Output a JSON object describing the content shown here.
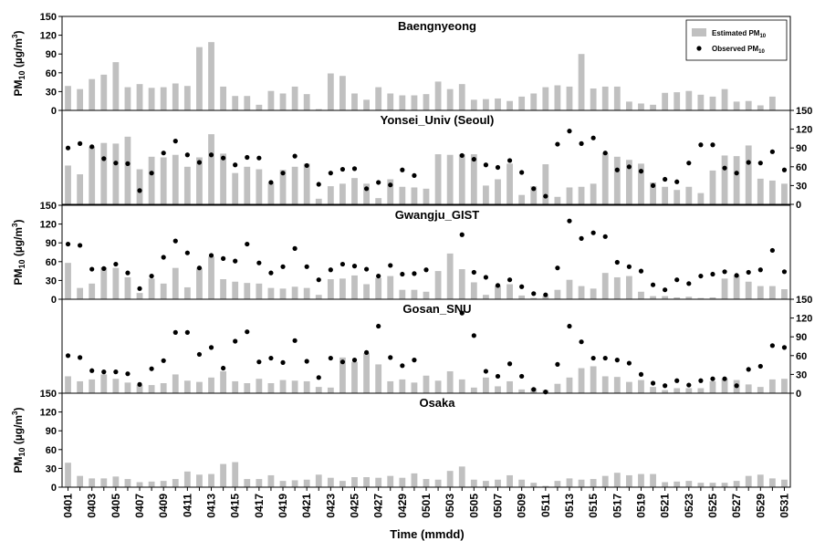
{
  "chart_data": {
    "type": "bar",
    "xlabel": "Time (mmdd)",
    "ylabel_prefix": "PM",
    "ylabel_sub": "10",
    "ylabel_unit": "(µg/m",
    "ylabel_sup": "3",
    "ylabel_close": ")",
    "ylim": [
      0,
      150
    ],
    "yticks": [
      0,
      30,
      60,
      90,
      120,
      150
    ],
    "grid": false,
    "legend_position": "top-right",
    "legend": {
      "estimated": "Estimated PM",
      "observed": "Observed PM",
      "sub": "10"
    },
    "colors": {
      "estimated": "#c0c0c0",
      "observed": "#000000"
    },
    "categories": [
      "0401",
      "0402",
      "0403",
      "0404",
      "0405",
      "0406",
      "0407",
      "0408",
      "0409",
      "0410",
      "0411",
      "0412",
      "0413",
      "0414",
      "0415",
      "0416",
      "0417",
      "0418",
      "0419",
      "0420",
      "0421",
      "0422",
      "0423",
      "0424",
      "0425",
      "0426",
      "0427",
      "0428",
      "0429",
      "0430",
      "0501",
      "0502",
      "0503",
      "0504",
      "0505",
      "0506",
      "0507",
      "0508",
      "0509",
      "0510",
      "0511",
      "0512",
      "0513",
      "0514",
      "0515",
      "0516",
      "0517",
      "0518",
      "0519",
      "0520",
      "0521",
      "0522",
      "0523",
      "0524",
      "0525",
      "0526",
      "0527",
      "0528",
      "0529",
      "0530",
      "0531"
    ],
    "x_tick_labels": [
      "0401",
      "0403",
      "0405",
      "0407",
      "0409",
      "0411",
      "0413",
      "0415",
      "0417",
      "0419",
      "0421",
      "0423",
      "0425",
      "0427",
      "0429",
      "0501",
      "0503",
      "0505",
      "0507",
      "0509",
      "0511",
      "0513",
      "0515",
      "0517",
      "0519",
      "0521",
      "0523",
      "0525",
      "0527",
      "0529",
      "0531"
    ],
    "panels": [
      {
        "title": "Baengnyeong",
        "axis_side": "left",
        "estimated": [
          39,
          34,
          50,
          57,
          77,
          37,
          42,
          36,
          37,
          43,
          39,
          101,
          109,
          38,
          23,
          23,
          9,
          31,
          27,
          38,
          26,
          2,
          59,
          55,
          27,
          17,
          37,
          27,
          24,
          24,
          26,
          46,
          34,
          42,
          17,
          18,
          19,
          15,
          22,
          27,
          37,
          40,
          38,
          90,
          35,
          38,
          38,
          14,
          11,
          9,
          28,
          29,
          31,
          25,
          22,
          34,
          14,
          15,
          8,
          22,
          null
        ],
        "observed": []
      },
      {
        "title": "Yonsei_Univ (Seoul)",
        "axis_side": "right",
        "estimated": [
          62,
          48,
          92,
          98,
          97,
          108,
          56,
          76,
          75,
          79,
          60,
          75,
          112,
          81,
          50,
          60,
          56,
          34,
          55,
          60,
          65,
          9,
          29,
          33,
          42,
          33,
          10,
          40,
          28,
          27,
          25,
          80,
          79,
          80,
          80,
          30,
          40,
          65,
          15,
          29,
          64,
          12,
          27,
          28,
          33,
          82,
          76,
          71,
          65,
          35,
          28,
          23,
          28,
          18,
          54,
          78,
          77,
          94,
          41,
          38,
          33
        ],
        "observed": [
          90,
          97,
          92,
          73,
          66,
          65,
          22,
          50,
          82,
          101,
          79,
          67,
          79,
          74,
          63,
          75,
          74,
          35,
          50,
          77,
          62,
          32,
          50,
          56,
          57,
          25,
          35,
          31,
          55,
          46,
          null,
          null,
          null,
          78,
          72,
          63,
          59,
          70,
          51,
          25,
          13,
          96,
          117,
          97,
          106,
          82,
          55,
          60,
          53,
          30,
          40,
          36,
          66,
          95,
          95,
          58,
          50,
          67,
          66,
          84,
          55
        ]
      },
      {
        "title": "Gwangju_GIST",
        "axis_side": "left",
        "estimated": [
          58,
          18,
          25,
          51,
          50,
          35,
          10,
          33,
          25,
          50,
          19,
          50,
          68,
          32,
          28,
          26,
          25,
          18,
          17,
          20,
          18,
          7,
          32,
          33,
          38,
          24,
          34,
          37,
          15,
          15,
          12,
          45,
          73,
          48,
          27,
          7,
          22,
          24,
          6,
          2,
          5,
          15,
          31,
          21,
          17,
          42,
          35,
          37,
          12,
          5,
          5,
          3,
          4,
          2,
          3,
          33,
          38,
          28,
          21,
          21,
          16
        ],
        "observed": [
          88,
          86,
          48,
          49,
          56,
          42,
          17,
          37,
          67,
          93,
          74,
          50,
          70,
          65,
          61,
          88,
          58,
          42,
          52,
          81,
          52,
          31,
          47,
          56,
          53,
          48,
          37,
          54,
          40,
          41,
          47,
          null,
          null,
          103,
          43,
          35,
          22,
          31,
          20,
          9,
          7,
          50,
          125,
          97,
          106,
          100,
          59,
          52,
          45,
          23,
          15,
          31,
          25,
          37,
          40,
          44,
          38,
          43,
          47,
          78,
          44
        ]
      },
      {
        "title": "Gosan_SNU",
        "axis_side": "right",
        "estimated": [
          27,
          19,
          22,
          30,
          23,
          17,
          13,
          13,
          16,
          30,
          20,
          18,
          25,
          35,
          19,
          16,
          23,
          16,
          21,
          20,
          19,
          10,
          9,
          57,
          50,
          64,
          46,
          19,
          22,
          17,
          28,
          20,
          35,
          22,
          9,
          25,
          11,
          19,
          6,
          8,
          5,
          15,
          25,
          40,
          43,
          27,
          26,
          18,
          21,
          10,
          5,
          8,
          8,
          8,
          19,
          23,
          21,
          14,
          10,
          22,
          23
        ],
        "observed": [
          60,
          57,
          36,
          34,
          34,
          31,
          14,
          39,
          52,
          97,
          97,
          62,
          73,
          40,
          83,
          98,
          50,
          56,
          49,
          84,
          51,
          25,
          56,
          50,
          53,
          65,
          107,
          57,
          44,
          53,
          null,
          null,
          null,
          128,
          92,
          35,
          27,
          47,
          27,
          6,
          2,
          46,
          107,
          82,
          56,
          56,
          53,
          48,
          30,
          16,
          12,
          20,
          13,
          20,
          23,
          23,
          12,
          38,
          43,
          76,
          73
        ]
      },
      {
        "title": "Osaka",
        "axis_side": "left",
        "estimated": [
          39,
          18,
          14,
          14,
          17,
          13,
          8,
          9,
          10,
          13,
          25,
          20,
          21,
          37,
          40,
          13,
          13,
          19,
          10,
          11,
          12,
          20,
          15,
          10,
          16,
          16,
          15,
          18,
          15,
          22,
          13,
          12,
          26,
          33,
          12,
          10,
          12,
          19,
          12,
          7,
          2,
          10,
          14,
          12,
          13,
          18,
          23,
          19,
          21,
          21,
          8,
          9,
          10,
          7,
          7,
          7,
          10,
          18,
          20,
          14,
          12
        ],
        "observed": []
      }
    ]
  }
}
